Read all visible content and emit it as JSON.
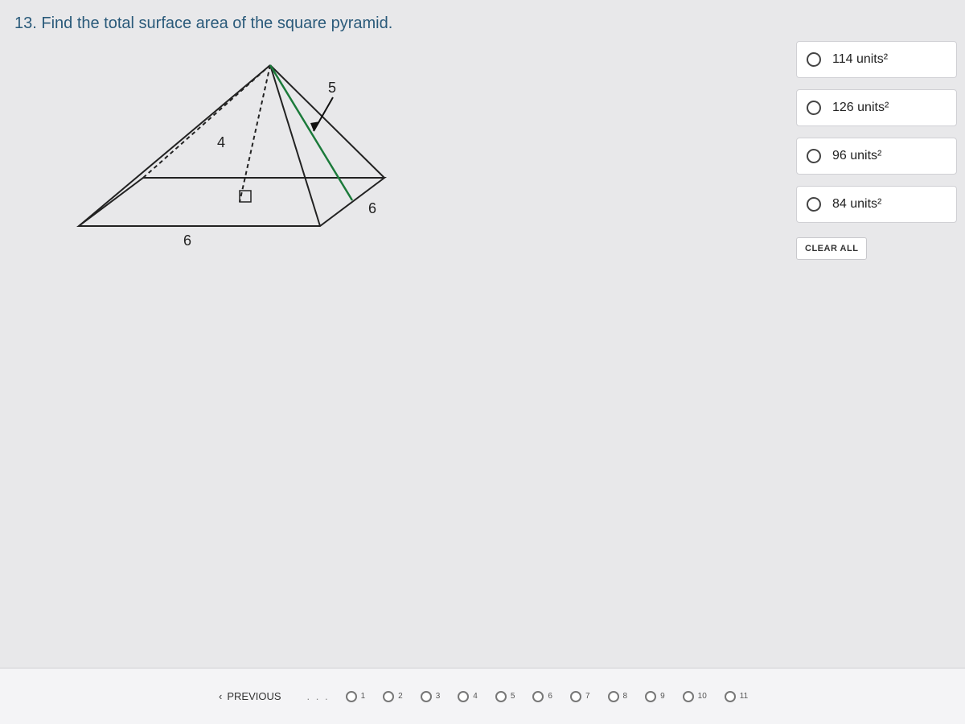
{
  "question": {
    "number": 13,
    "text": "13. Find the total surface area of the square pyramid."
  },
  "diagram": {
    "type": "square_pyramid",
    "labels": {
      "slant": "5",
      "height": "4",
      "base_front": "6",
      "base_right": "6"
    },
    "stroke_color": "#222222",
    "slant_color": "#1b7a3a",
    "arrow_color": "#1b1b1b",
    "right_angle_marker": true
  },
  "options": [
    {
      "label_html": "114 units²"
    },
    {
      "label_html": "126 units²"
    },
    {
      "label_html": "96 units²"
    },
    {
      "label_html": "84 units²"
    }
  ],
  "clear_button": "CLEAR ALL",
  "nav": {
    "previous": "PREVIOUS",
    "ellipsis": ". . .",
    "items": [
      1,
      2,
      3,
      4,
      5,
      6,
      7,
      8,
      9,
      10,
      11
    ]
  },
  "colors": {
    "question_text": "#2a5a7a",
    "page_bg": "#e8e8ea",
    "option_bg": "#ffffff",
    "option_border": "#d0d0d4"
  }
}
